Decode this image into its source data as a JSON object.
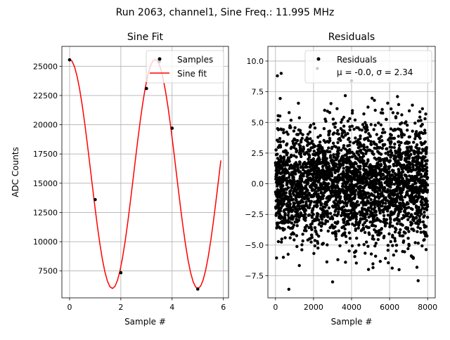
{
  "suptitle": "Run 2063, channel1, Sine Freq.: 11.995 MHz",
  "chart_data": [
    {
      "type": "line",
      "title": "Sine Fit",
      "xlabel": "Sample #",
      "ylabel": "ADC Counts",
      "xlim": [
        -0.3,
        6.2
      ],
      "ylim": [
        5200,
        26700
      ],
      "xticks": [
        0,
        2,
        4,
        6
      ],
      "xtick_labels": [
        "0",
        "2",
        "4",
        "6"
      ],
      "yticks": [
        7500,
        10000,
        12500,
        15000,
        17500,
        20000,
        22500,
        25000
      ],
      "ytick_labels": [
        "7500",
        "10000",
        "12500",
        "15000",
        "17500",
        "20000",
        "22500",
        "25000"
      ],
      "grid": true,
      "legend": {
        "position": "upper right",
        "entries": [
          "Samples",
          "Sine fit"
        ]
      },
      "samples": {
        "name": "Samples",
        "color": "#000000",
        "x": [
          0,
          1,
          2,
          3,
          3.5,
          4,
          5
        ],
        "y": [
          25550,
          13600,
          7350,
          23100,
          25400,
          19700,
          5950
        ]
      },
      "fit": {
        "name": "Sine fit",
        "color": "#ff0000",
        "offset": 15800,
        "amplitude": 9800,
        "period": 3.336,
        "phase": 1.571,
        "x_range": [
          0,
          5.9
        ],
        "points": 60
      }
    },
    {
      "type": "scatter",
      "title": "Residuals",
      "xlabel": "Sample #",
      "xlim": [
        -400,
        8400
      ],
      "ylim": [
        -9.3,
        11.2
      ],
      "xticks": [
        0,
        2000,
        4000,
        6000,
        8000
      ],
      "xtick_labels": [
        "0",
        "2000",
        "4000",
        "6000",
        "8000"
      ],
      "yticks": [
        -7.5,
        -5.0,
        -2.5,
        0.0,
        2.5,
        5.0,
        7.5,
        10.0
      ],
      "ytick_labels": [
        "−7.5",
        "−5.0",
        "−2.5",
        "0.0",
        "2.5",
        "5.0",
        "7.5",
        "10.0"
      ],
      "grid": true,
      "legend": {
        "position": "upper right",
        "entries": [
          "Residuals"
        ],
        "stats": "μ = -0.0, σ = 2.34"
      },
      "series": {
        "name": "Residuals",
        "color": "#000000",
        "mean": 0.0,
        "std": 2.34,
        "count": 8000,
        "notable_points": [
          [
            100,
            8.8
          ],
          [
            700,
            -8.6
          ],
          [
            2200,
            9.4
          ],
          [
            3000,
            -8.0
          ],
          [
            4000,
            8.4
          ],
          [
            7500,
            -7.9
          ],
          [
            300,
            9.0
          ],
          [
            5200,
            6.8
          ],
          [
            6500,
            -7.0
          ]
        ]
      }
    }
  ]
}
